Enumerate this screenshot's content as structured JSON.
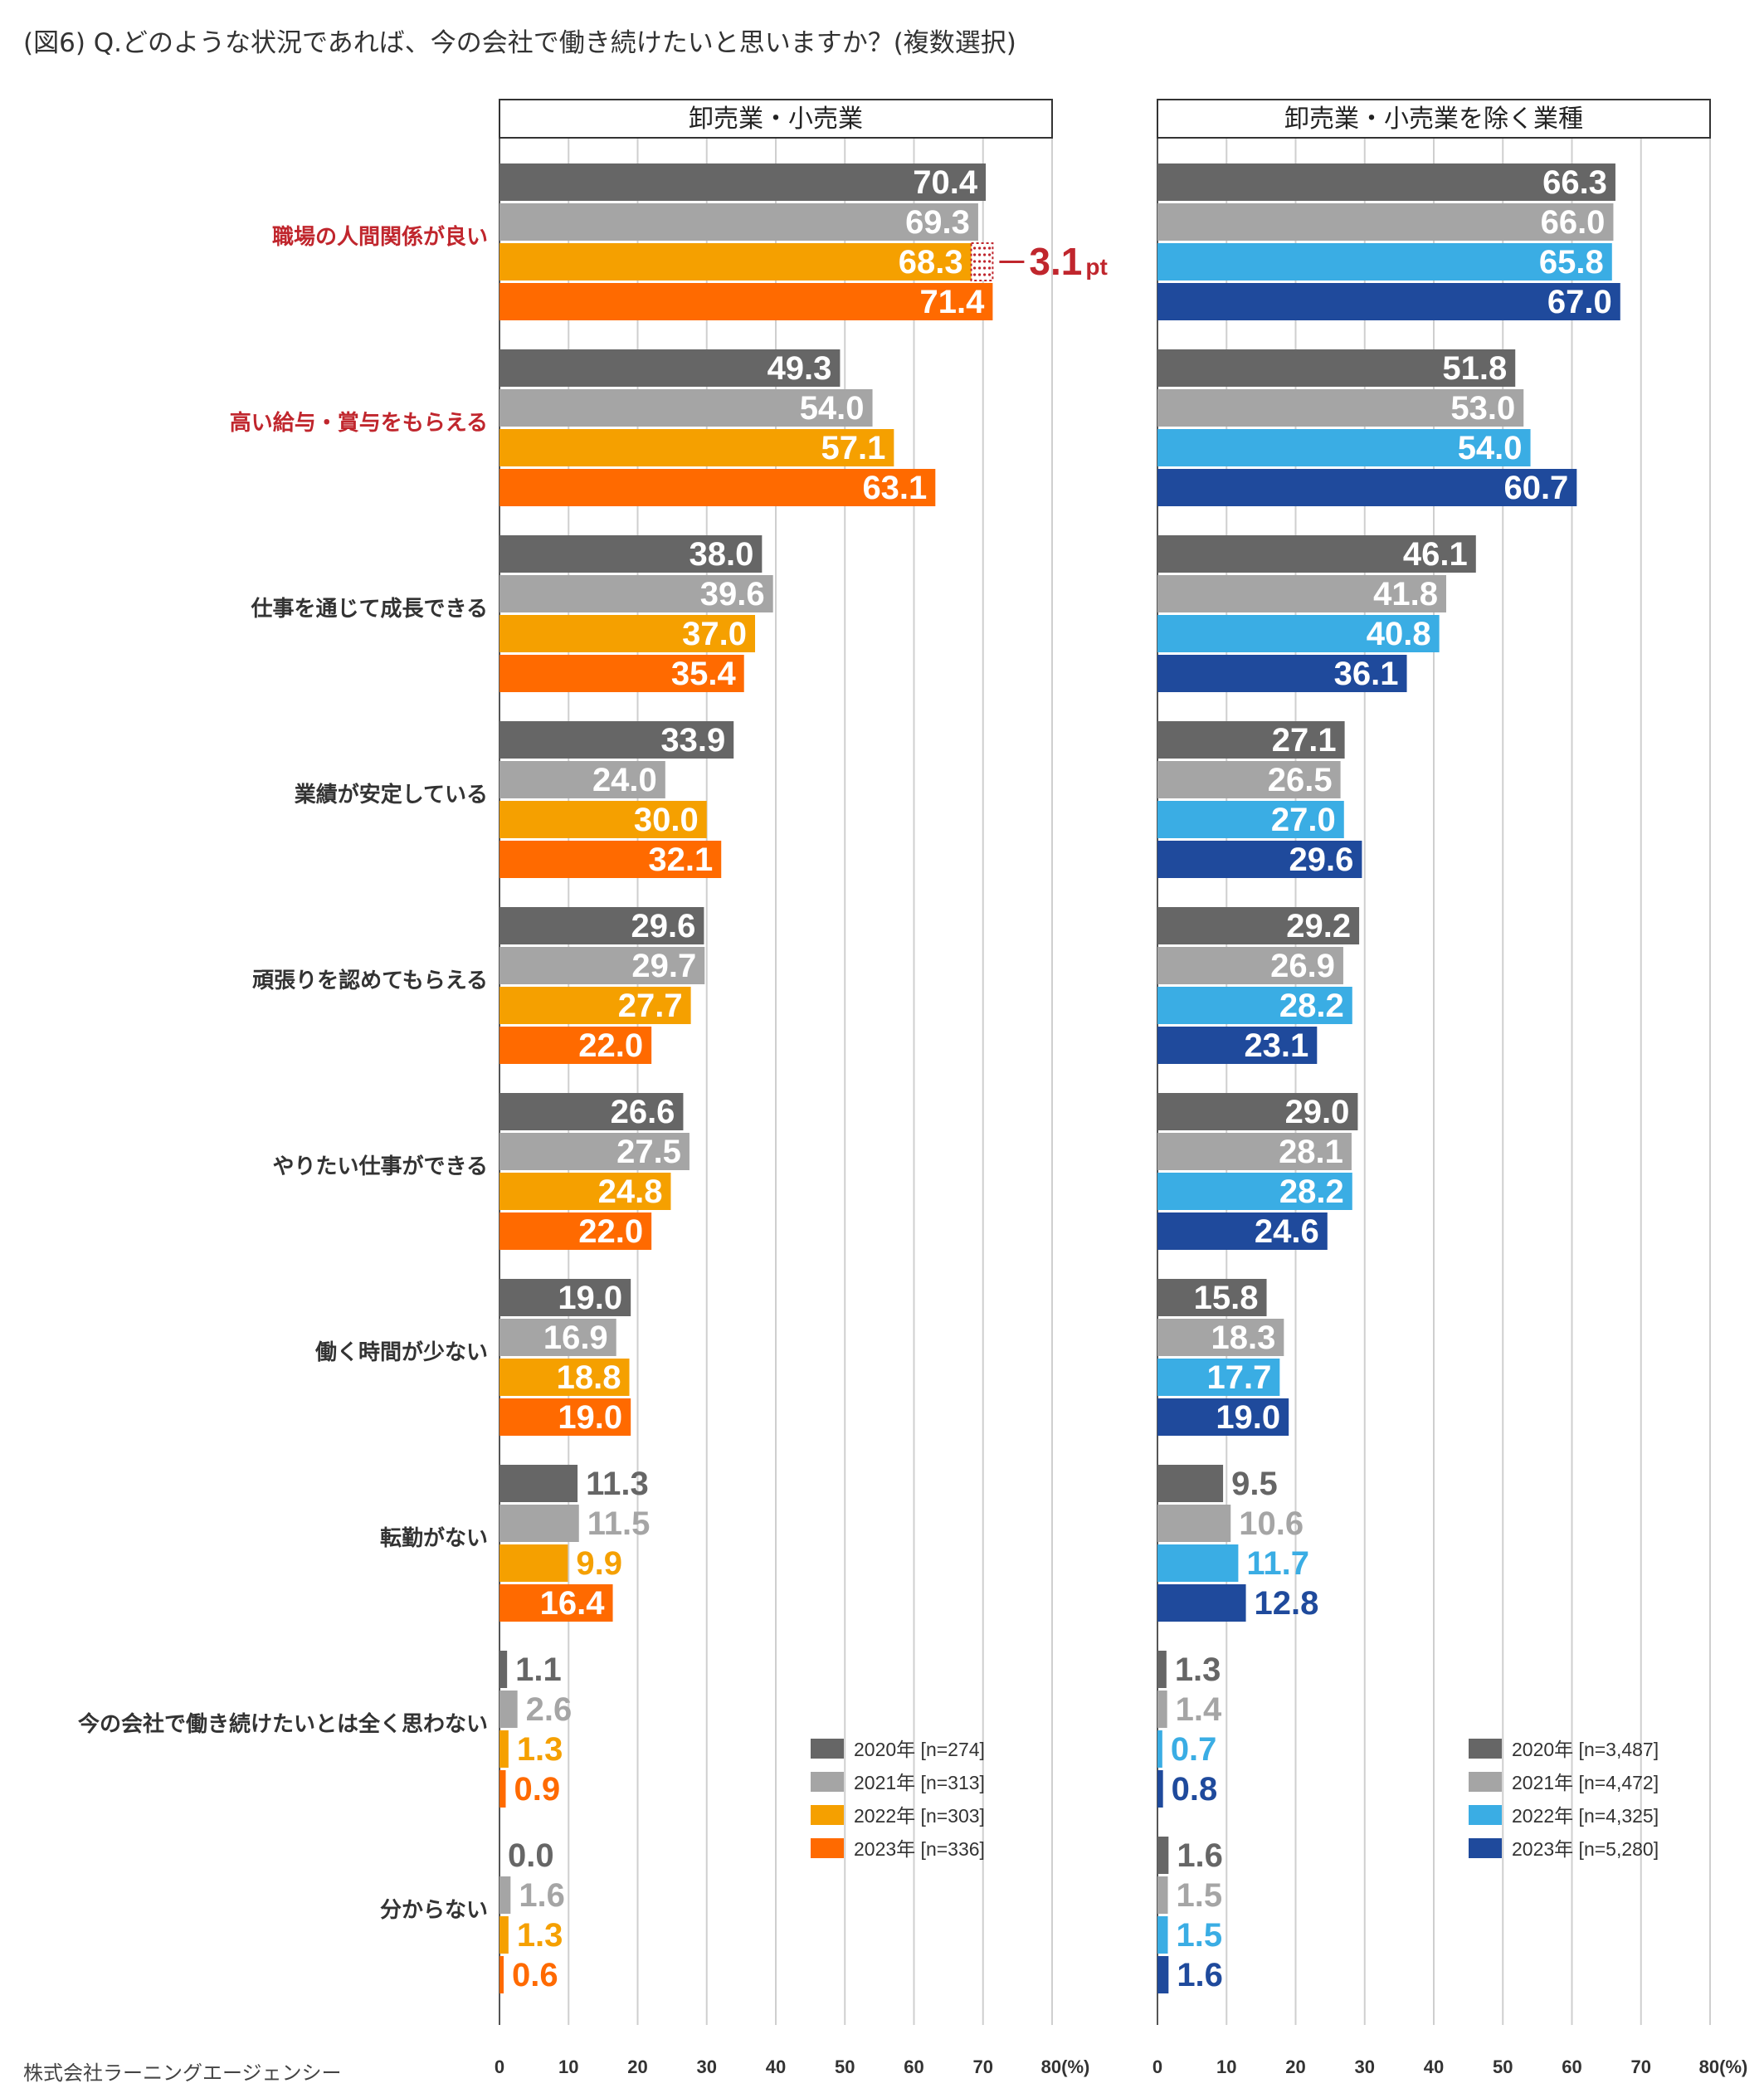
{
  "title": "(図6) Q.どのような状況であれば、今の会社で働き続けたいと思いますか？(複数選択)",
  "credit": "株式会社ラーニングエージェンシー",
  "chart_data": {
    "type": "bar",
    "orientation": "horizontal",
    "categories": [
      "職場の人間関係が良い",
      "高い給与・賞与をもらえる",
      "仕事を通じて成長できる",
      "業績が安定している",
      "頑張りを認めてもらえる",
      "やりたい仕事ができる",
      "働く時間が少ない",
      "転勤がない",
      "今の会社で働き続けたいとは全く思わない",
      "分からない"
    ],
    "highlight_categories": [
      "職場の人間関係が良い",
      "高い給与・賞与をもらえる"
    ],
    "highlight_color": "#c0262d",
    "xlim": [
      0,
      80
    ],
    "xticks": [
      "0",
      "10",
      "20",
      "30",
      "40",
      "50",
      "60",
      "70",
      "80(%)"
    ],
    "panels": [
      {
        "name": "卸売業・小売業",
        "series": [
          {
            "name": "2020年",
            "legend": "2020年 [n=274]",
            "color": "#666666",
            "values": [
              70.4,
              49.3,
              38.0,
              33.9,
              29.6,
              26.6,
              19.0,
              11.3,
              1.1,
              0.0
            ]
          },
          {
            "name": "2021年",
            "legend": "2021年 [n=313]",
            "color": "#a5a5a5",
            "values": [
              69.3,
              54.0,
              39.6,
              24.0,
              29.7,
              27.5,
              16.9,
              11.5,
              2.6,
              1.6
            ]
          },
          {
            "name": "2022年",
            "legend": "2022年 [n=303]",
            "color": "#f5a000",
            "values": [
              68.3,
              57.1,
              37.0,
              30.0,
              27.7,
              24.8,
              18.8,
              9.9,
              1.3,
              1.3
            ]
          },
          {
            "name": "2023年",
            "legend": "2023年 [n=336]",
            "color": "#ff6a00",
            "values": [
              71.4,
              63.1,
              35.4,
              32.1,
              22.0,
              22.0,
              19.0,
              16.4,
              0.9,
              0.6
            ]
          }
        ],
        "annotation": {
          "category": "職場の人間関係が良い",
          "text": "3.1",
          "unit": "pt",
          "from": 68.3,
          "to": 71.4
        }
      },
      {
        "name": "卸売業・小売業を除く業種",
        "series": [
          {
            "name": "2020年",
            "legend": "2020年 [n=3,487]",
            "color": "#666666",
            "values": [
              66.3,
              51.8,
              46.1,
              27.1,
              29.2,
              29.0,
              15.8,
              9.5,
              1.3,
              1.6
            ]
          },
          {
            "name": "2021年",
            "legend": "2021年 [n=4,472]",
            "color": "#a5a5a5",
            "values": [
              66.0,
              53.0,
              41.8,
              26.5,
              26.9,
              28.1,
              18.3,
              10.6,
              1.4,
              1.5
            ]
          },
          {
            "name": "2022年",
            "legend": "2022年 [n=4,325]",
            "color": "#3aade4",
            "values": [
              65.8,
              54.0,
              40.8,
              27.0,
              28.2,
              28.2,
              17.7,
              11.7,
              0.7,
              1.5
            ]
          },
          {
            "name": "2023年",
            "legend": "2023年 [n=5,280]",
            "color": "#1f4a9c",
            "values": [
              67.0,
              60.7,
              36.1,
              29.6,
              23.1,
              24.6,
              19.0,
              12.8,
              0.8,
              1.6
            ]
          }
        ]
      }
    ]
  }
}
